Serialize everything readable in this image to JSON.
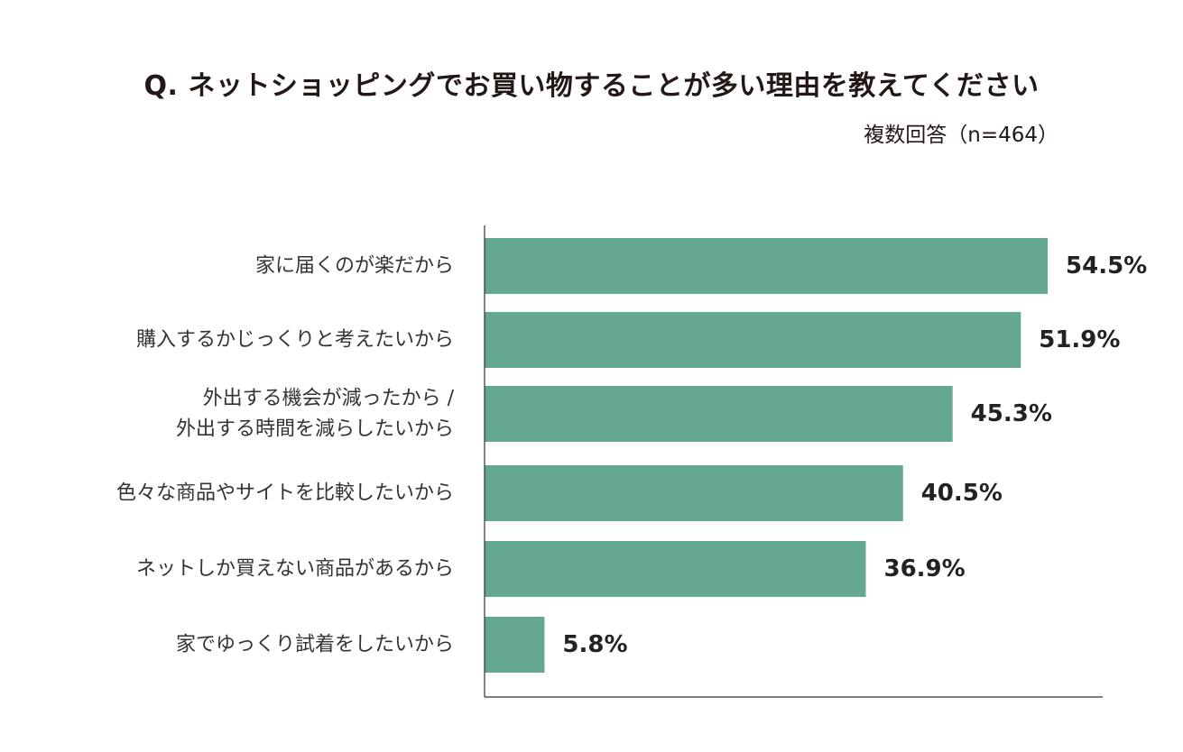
{
  "chart_data": {
    "type": "bar",
    "orientation": "horizontal",
    "title": "Q. ネットショッピングでお買い物することが多い理由を教えてください",
    "subtitle": "複数回答（n=464）",
    "categories": [
      "家に届くのが楽だから",
      "購入するかじっくりと考えたいから",
      "外出する機会が減ったから / 外出する時間を減らしたいから",
      "色々な商品やサイトを比較したいから",
      "ネットしか買えない商品があるから",
      "家でゆっくり試着をしたいから"
    ],
    "category_lines": [
      [
        "家に届くのが楽だから"
      ],
      [
        "購入するかじっくりと考えたいから"
      ],
      [
        "外出する機会が減ったから /",
        "外出する時間を減らしたいから"
      ],
      [
        "色々な商品やサイトを比較したいから"
      ],
      [
        "ネットしか買えない商品があるから"
      ],
      [
        "家でゆっくり試着をしたいから"
      ]
    ],
    "values": [
      54.5,
      51.9,
      45.3,
      40.5,
      36.9,
      5.8
    ],
    "value_labels": [
      "54.5%",
      "51.9%",
      "45.3%",
      "40.5%",
      "36.9%",
      "5.8%"
    ],
    "unit": "%",
    "xlim": [
      0,
      60
    ],
    "bar_color": "#64a88f",
    "grid": false,
    "legend": "none"
  }
}
